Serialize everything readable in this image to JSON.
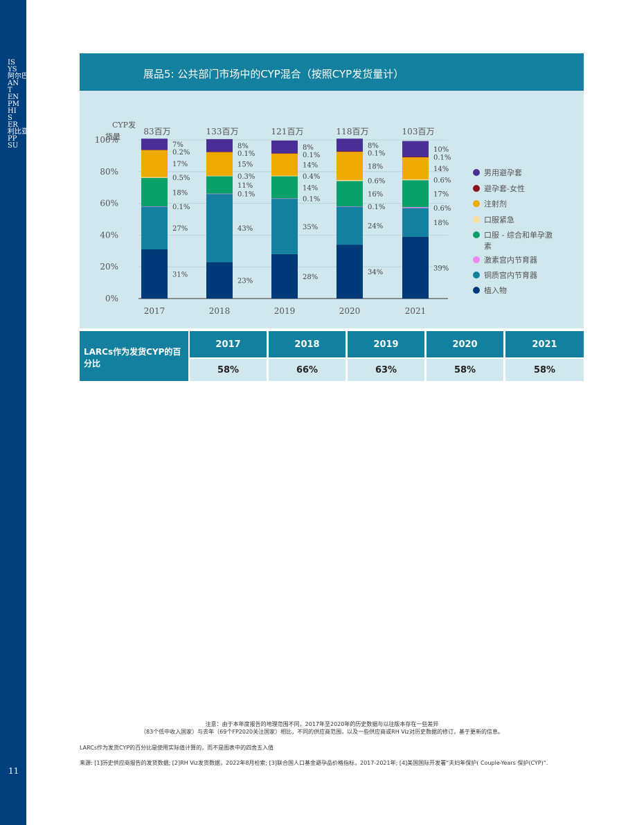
{
  "sidebar": {
    "lines": [
      "IS",
      "YS",
      "阿尔巴",
      "AN",
      "T",
      "EN",
      "PM",
      "HI",
      "S",
      "ER",
      "利比亚",
      "PP",
      "SU"
    ],
    "page_number": "11"
  },
  "title": "展品5: 公共部门市场中的CYP混合（按照CYP发货量计）",
  "chart_data": {
    "type": "bar",
    "stacked": true,
    "categories": [
      "2017",
      "2018",
      "2019",
      "2020",
      "2021"
    ],
    "totals": [
      "83百万",
      "133百万",
      "121百万",
      "118百万",
      "103百万"
    ],
    "totals_label": "CYP发货量",
    "ylim": [
      0,
      100
    ],
    "yticks": [
      "0%",
      "20%",
      "40%",
      "60%",
      "80%",
      "100%"
    ],
    "grid": true,
    "legend_position": "right",
    "series": [
      {
        "name": "植入物",
        "color": "#003a78",
        "values": [
          31,
          23,
          28,
          34,
          39
        ],
        "labels": [
          "31%",
          "23%",
          "28%",
          "34%",
          "39%"
        ]
      },
      {
        "name": "铜质宫内节育器",
        "color": "#12809e",
        "values": [
          27,
          43,
          35,
          24,
          18
        ],
        "labels": [
          "27%",
          "43%",
          "35%",
          "24%",
          "18%"
        ]
      },
      {
        "name": "激素宫内节育器",
        "color": "#ee88ee",
        "values": [
          0.1,
          0.1,
          0.1,
          0.1,
          0.6
        ],
        "labels": [
          "0.1%",
          "0.1%",
          "0.1%",
          "0.1%",
          "0.6%"
        ]
      },
      {
        "name": "口服 - 综合和单孕激素",
        "color": "#0aa06a",
        "values": [
          18,
          11,
          14,
          16,
          17
        ],
        "labels": [
          "18%",
          "11%",
          "14%",
          "16%",
          "17%"
        ]
      },
      {
        "name": "口服紧急",
        "color": "#f8df9c",
        "values": [
          0.5,
          0.3,
          0.4,
          0.6,
          0.6
        ],
        "labels": [
          "0.5%",
          "0.3%",
          "0.4%",
          "0.6%",
          "0.6%"
        ]
      },
      {
        "name": "注射剂",
        "color": "#efaa00",
        "values": [
          17,
          15,
          14,
          18,
          14
        ],
        "labels": [
          "17%",
          "15%",
          "14%",
          "18%",
          "14%"
        ]
      },
      {
        "name": "避孕套-女性",
        "color": "#8b1420",
        "values": [
          0.2,
          0.1,
          0.1,
          0.1,
          0.1
        ],
        "labels": [
          "0.2%",
          "0.1%",
          "0.1%",
          "0.1%",
          "0.1%"
        ]
      },
      {
        "name": "男用避孕套",
        "color": "#4a2e96",
        "values": [
          7,
          8,
          8,
          8,
          10
        ],
        "labels": [
          "7%",
          "8%",
          "8%",
          "8%",
          "10%"
        ]
      }
    ],
    "legend_order": [
      "男用避孕套",
      "避孕套-女性",
      "注射剂",
      "口服紧急",
      "口服 - 综合和单孕激素",
      "激素宫内节育器",
      "铜质宫内节育器",
      "植入物"
    ]
  },
  "larc_table": {
    "label": "LARCs作为发货CYP的百分比",
    "years": [
      "2017",
      "2018",
      "2019",
      "2020",
      "2021"
    ],
    "values": [
      "58%",
      "66%",
      "63%",
      "58%",
      "58%"
    ]
  },
  "notes": {
    "note1_line1": "注意：由于本年度报告的地理范围不同，2017年至2020年的历史数据与以往版本存在一些差异",
    "note1_line2": "（83个低中收入国家）与去年（69个FP2020关注国家）相比，不同的供应商范围，以及一些供应商或RH Viz对历史数据的修订，基于更新的信息。",
    "note2": "LARCs作为发货CYP的百分比是使用实际值计算的，而不是图表中的四舍五入值",
    "note3": "来源: [1]历史供应商报告的发货数据; [2]RH Viz发货数据，2022年8月检索; [3]联合国人口基金避孕品价格指标，2017-2021年; [4]美国国际开发署“夫妇年保护( Couple-Years 保护(CYP)”."
  }
}
